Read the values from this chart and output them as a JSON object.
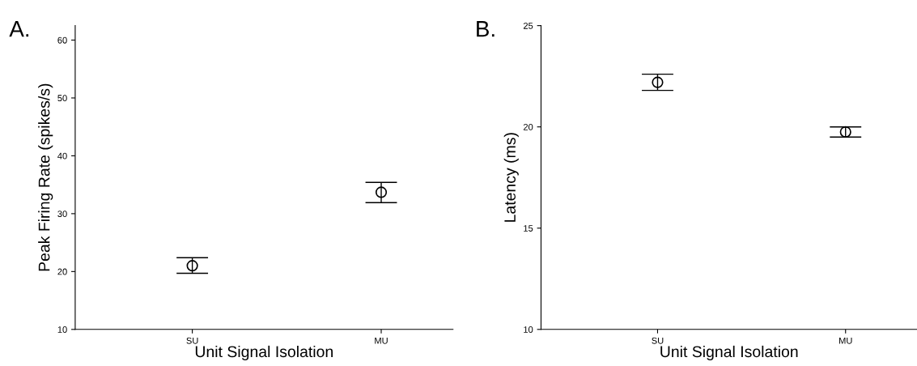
{
  "chart_data": [
    {
      "type": "scatter",
      "categories": [
        "SU",
        "MU"
      ],
      "xlabel": "Unit Signal Isolation",
      "ylabel": "Peak Firing Rate (spikes/s)",
      "annotations": [
        "A."
      ],
      "marker": "circle",
      "ylim": [
        10,
        62.5
      ],
      "yticks": [
        10,
        20,
        30,
        40,
        50,
        60
      ],
      "colors": [
        "#000000",
        "#000000"
      ],
      "values": [
        21.0,
        33.7
      ],
      "errors": [
        [
          19.7,
          22.4
        ],
        [
          31.9,
          35.4
        ]
      ]
    },
    {
      "type": "scatter",
      "categories": [
        "SU",
        "MU"
      ],
      "xlabel": "Unit Signal Isolation",
      "ylabel": "Latency (ms)",
      "annotations": [
        "B."
      ],
      "marker": "circle",
      "ylim": [
        10,
        25
      ],
      "yticks": [
        10,
        15,
        20,
        25
      ],
      "colors": [
        "#000000",
        "#000000"
      ],
      "values": [
        22.2,
        19.75
      ],
      "errors": [
        [
          21.8,
          22.6
        ],
        [
          19.5,
          20.0
        ]
      ]
    }
  ]
}
